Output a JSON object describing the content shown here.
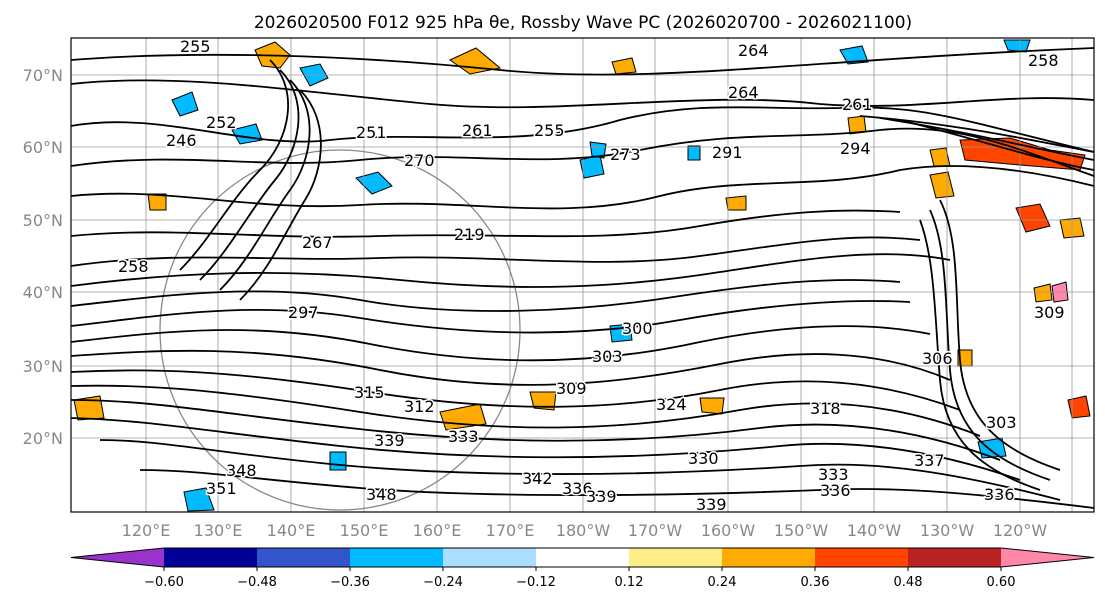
{
  "title": "2026020500 F012 925 hPa θe, Rossby Wave PC (2026020700 - 2026021100)",
  "map": {
    "lat_labels": [
      "70°N",
      "60°N",
      "50°N",
      "40°N",
      "30°N",
      "20°N"
    ],
    "lon_labels": [
      "120°E",
      "130°E",
      "140°E",
      "150°E",
      "160°E",
      "170°E",
      "180°W",
      "170°W",
      "160°W",
      "150°W",
      "140°W",
      "130°W",
      "120°W"
    ],
    "contour_labels": [
      "255",
      "264",
      "264",
      "258",
      "246",
      "252",
      "251",
      "261",
      "255",
      "273",
      "261",
      "291",
      "294",
      "267",
      "270",
      "219",
      "258",
      "297",
      "300",
      "303",
      "309",
      "312",
      "315",
      "318",
      "324",
      "306",
      "309",
      "303",
      "330",
      "339",
      "333",
      "336",
      "339",
      "342",
      "348",
      "351",
      "348",
      "336",
      "333",
      "337",
      "336",
      "339"
    ]
  },
  "colorbar": {
    "ticks": [
      "−0.60",
      "−0.48",
      "−0.36",
      "−0.24",
      "−0.12",
      "0.12",
      "0.24",
      "0.36",
      "0.48",
      "0.60"
    ],
    "colors": [
      "#9933cc",
      "#000099",
      "#3355cc",
      "#00bbff",
      "#aaddff",
      "#ffffff",
      "#ffee88",
      "#ffaa00",
      "#ff4400",
      "#bb2222",
      "#ff88aa"
    ]
  }
}
